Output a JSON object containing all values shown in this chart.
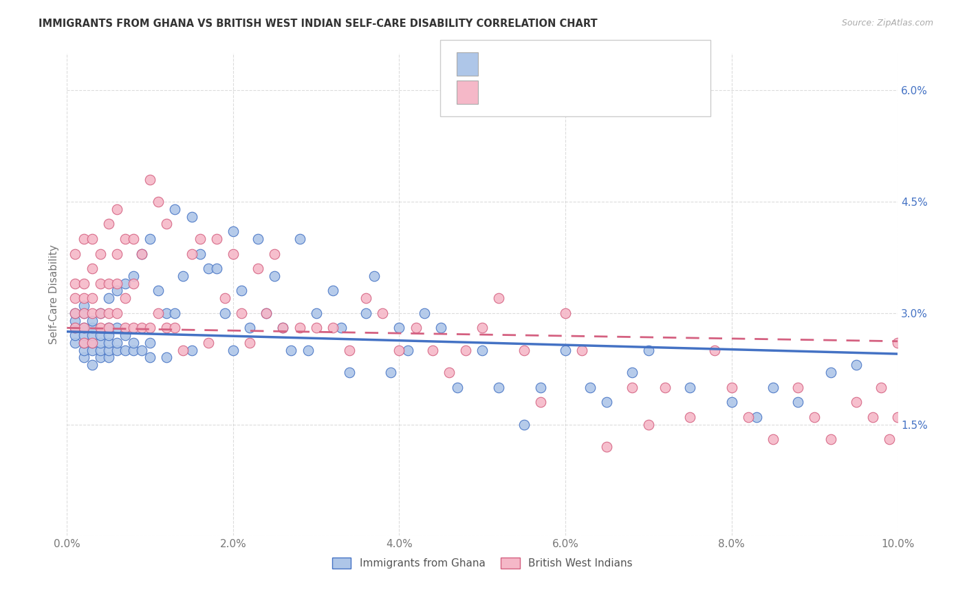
{
  "title": "IMMIGRANTS FROM GHANA VS BRITISH WEST INDIAN SELF-CARE DISABILITY CORRELATION CHART",
  "source": "Source: ZipAtlas.com",
  "ylabel": "Self-Care Disability",
  "y_ticks": [
    0.0,
    0.015,
    0.03,
    0.045,
    0.06
  ],
  "y_tick_labels": [
    "",
    "1.5%",
    "3.0%",
    "4.5%",
    "6.0%"
  ],
  "x_range": [
    0.0,
    0.1
  ],
  "y_range": [
    0.0,
    0.065
  ],
  "color_blue": "#aec6e8",
  "color_pink": "#f5b8c8",
  "trendline_blue": "#4472c4",
  "trendline_pink": "#d46080",
  "label1": "Immigrants from Ghana",
  "label2": "British West Indians",
  "ghana_trend_x0": 0.0,
  "ghana_trend_y0": 0.0275,
  "ghana_trend_x1": 0.1,
  "ghana_trend_y1": 0.0245,
  "bwi_trend_x0": 0.0,
  "bwi_trend_y0": 0.028,
  "bwi_trend_x1": 0.1,
  "bwi_trend_y1": 0.0262,
  "ghana_x": [
    0.001,
    0.001,
    0.001,
    0.001,
    0.001,
    0.002,
    0.002,
    0.002,
    0.002,
    0.002,
    0.002,
    0.002,
    0.003,
    0.003,
    0.003,
    0.003,
    0.003,
    0.003,
    0.004,
    0.004,
    0.004,
    0.004,
    0.004,
    0.005,
    0.005,
    0.005,
    0.005,
    0.005,
    0.005,
    0.006,
    0.006,
    0.006,
    0.006,
    0.007,
    0.007,
    0.007,
    0.008,
    0.008,
    0.008,
    0.009,
    0.009,
    0.01,
    0.01,
    0.01,
    0.011,
    0.012,
    0.012,
    0.013,
    0.013,
    0.014,
    0.015,
    0.015,
    0.016,
    0.017,
    0.018,
    0.019,
    0.02,
    0.02,
    0.021,
    0.022,
    0.023,
    0.024,
    0.025,
    0.026,
    0.027,
    0.028,
    0.029,
    0.03,
    0.032,
    0.033,
    0.034,
    0.036,
    0.037,
    0.039,
    0.04,
    0.041,
    0.043,
    0.045,
    0.047,
    0.05,
    0.052,
    0.055,
    0.057,
    0.06,
    0.063,
    0.065,
    0.068,
    0.07,
    0.075,
    0.08,
    0.083,
    0.085,
    0.088,
    0.092,
    0.095
  ],
  "ghana_y": [
    0.026,
    0.027,
    0.028,
    0.029,
    0.03,
    0.024,
    0.025,
    0.026,
    0.027,
    0.028,
    0.03,
    0.031,
    0.023,
    0.025,
    0.026,
    0.027,
    0.028,
    0.029,
    0.024,
    0.025,
    0.026,
    0.027,
    0.03,
    0.024,
    0.025,
    0.026,
    0.027,
    0.028,
    0.032,
    0.025,
    0.026,
    0.028,
    0.033,
    0.025,
    0.027,
    0.034,
    0.025,
    0.026,
    0.035,
    0.025,
    0.038,
    0.024,
    0.026,
    0.04,
    0.033,
    0.024,
    0.03,
    0.03,
    0.044,
    0.035,
    0.025,
    0.043,
    0.038,
    0.036,
    0.036,
    0.03,
    0.041,
    0.025,
    0.033,
    0.028,
    0.04,
    0.03,
    0.035,
    0.028,
    0.025,
    0.04,
    0.025,
    0.03,
    0.033,
    0.028,
    0.022,
    0.03,
    0.035,
    0.022,
    0.028,
    0.025,
    0.03,
    0.028,
    0.02,
    0.025,
    0.02,
    0.015,
    0.02,
    0.025,
    0.02,
    0.018,
    0.022,
    0.025,
    0.02,
    0.018,
    0.016,
    0.02,
    0.018,
    0.022,
    0.023
  ],
  "bwi_x": [
    0.001,
    0.001,
    0.001,
    0.001,
    0.001,
    0.002,
    0.002,
    0.002,
    0.002,
    0.002,
    0.002,
    0.003,
    0.003,
    0.003,
    0.003,
    0.003,
    0.004,
    0.004,
    0.004,
    0.004,
    0.005,
    0.005,
    0.005,
    0.005,
    0.006,
    0.006,
    0.006,
    0.006,
    0.007,
    0.007,
    0.007,
    0.008,
    0.008,
    0.008,
    0.009,
    0.009,
    0.01,
    0.01,
    0.011,
    0.011,
    0.012,
    0.012,
    0.013,
    0.014,
    0.015,
    0.016,
    0.017,
    0.018,
    0.019,
    0.02,
    0.021,
    0.022,
    0.023,
    0.024,
    0.025,
    0.026,
    0.028,
    0.03,
    0.032,
    0.034,
    0.036,
    0.038,
    0.04,
    0.042,
    0.044,
    0.046,
    0.048,
    0.05,
    0.052,
    0.055,
    0.057,
    0.06,
    0.062,
    0.065,
    0.068,
    0.07,
    0.072,
    0.075,
    0.078,
    0.08,
    0.082,
    0.085,
    0.088,
    0.09,
    0.092,
    0.095,
    0.097,
    0.098,
    0.099,
    0.1,
    0.1
  ],
  "bwi_y": [
    0.028,
    0.03,
    0.032,
    0.034,
    0.038,
    0.026,
    0.028,
    0.03,
    0.032,
    0.034,
    0.04,
    0.026,
    0.03,
    0.032,
    0.036,
    0.04,
    0.028,
    0.03,
    0.034,
    0.038,
    0.028,
    0.03,
    0.034,
    0.042,
    0.03,
    0.034,
    0.038,
    0.044,
    0.028,
    0.032,
    0.04,
    0.028,
    0.034,
    0.04,
    0.028,
    0.038,
    0.028,
    0.048,
    0.03,
    0.045,
    0.028,
    0.042,
    0.028,
    0.025,
    0.038,
    0.04,
    0.026,
    0.04,
    0.032,
    0.038,
    0.03,
    0.026,
    0.036,
    0.03,
    0.038,
    0.028,
    0.028,
    0.028,
    0.028,
    0.025,
    0.032,
    0.03,
    0.025,
    0.028,
    0.025,
    0.022,
    0.025,
    0.028,
    0.032,
    0.025,
    0.018,
    0.03,
    0.025,
    0.012,
    0.02,
    0.015,
    0.02,
    0.016,
    0.025,
    0.02,
    0.016,
    0.013,
    0.02,
    0.016,
    0.013,
    0.018,
    0.016,
    0.02,
    0.013,
    0.016,
    0.026
  ]
}
